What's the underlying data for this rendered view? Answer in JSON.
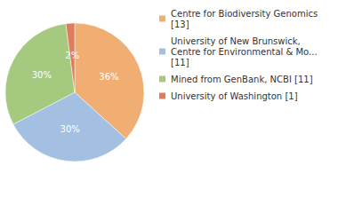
{
  "chart_data": {
    "type": "pie",
    "categories": [
      "Centre for Biodiversity Genomics [13]",
      "University of New Brunswick, Centre for Environmental & Mo... [11]",
      "Mined from GenBank, NCBI [11]",
      "University of Washington [1]"
    ],
    "values": [
      36,
      30,
      30,
      2
    ],
    "value_labels": [
      "36%",
      "30%",
      "30%",
      "2%"
    ],
    "colors": [
      "#f0ae72",
      "#a3bfe2",
      "#a4c97f",
      "#e07b5e"
    ],
    "data_labels": true,
    "legend": "right"
  }
}
